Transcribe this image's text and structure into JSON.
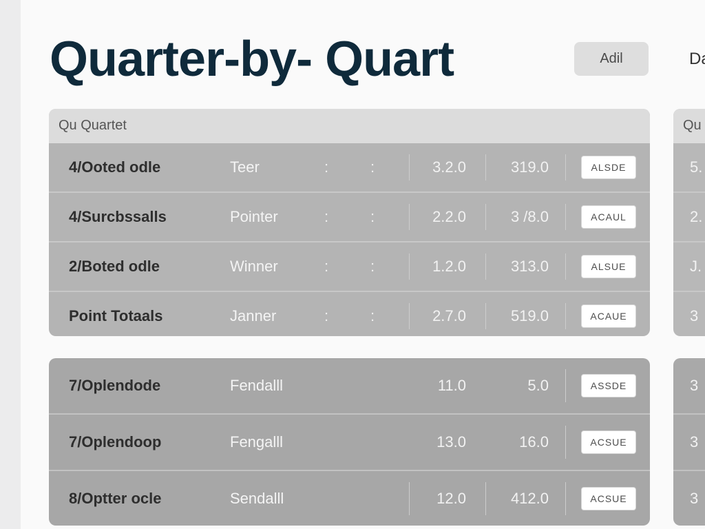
{
  "header": {
    "title": "Quarter-by- Quart",
    "add_button": "Adil",
    "right_text": "Da"
  },
  "card_a": {
    "header": "Qu Quartet",
    "rows": [
      {
        "name": "4/Ooted odle",
        "type": "Teer",
        "colon1": ":",
        "colon2": ":",
        "v1": "3.2.0",
        "v2": "319.0",
        "action": "ALSDE"
      },
      {
        "name": "4/Surcbssalls",
        "type": "Pointer",
        "colon1": ":",
        "colon2": ":",
        "v1": "2.2.0",
        "v2": "3 /8.0",
        "action": "ACAUL"
      },
      {
        "name": "2/Boted odle",
        "type": "Winner",
        "colon1": ":",
        "colon2": ":",
        "v1": "1.2.0",
        "v2": "313.0",
        "action": "ALSUE"
      },
      {
        "name": "Point Totaals",
        "type": "Janner",
        "colon1": ":",
        "colon2": ":",
        "v1": "2.7.0",
        "v2": "519.0",
        "action": "ACAUE"
      }
    ]
  },
  "card_b": {
    "rows": [
      {
        "name": "7/Oplendode",
        "type": "Fendalll",
        "v1": "11.0",
        "v2": "5.0",
        "action": "ASSDE"
      },
      {
        "name": "7/Oplendoop",
        "type": "Fengalll",
        "v1": "13.0",
        "v2": "16.0",
        "action": "ACSUE"
      },
      {
        "name": "8/Optter ocle",
        "type": "Sendalll",
        "v1": "12.0",
        "v2": "412.0",
        "action": "ACSUE"
      }
    ]
  },
  "side_a": {
    "header": "Qu",
    "rows": [
      "5.",
      "2.",
      "J.",
      "3"
    ]
  },
  "side_b": {
    "rows": [
      "3",
      "3",
      "3"
    ]
  }
}
